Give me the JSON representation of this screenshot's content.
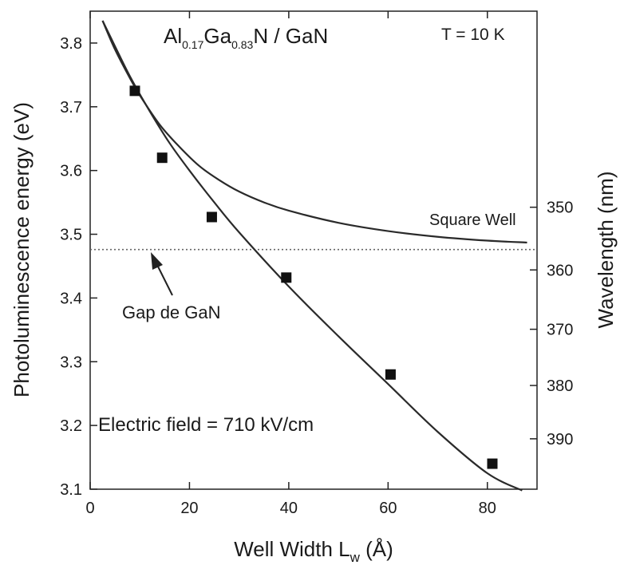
{
  "chart_data": {
    "type": "scatter",
    "title_parts": {
      "a1": "Al",
      "s1": "0.17",
      "a2": "Ga",
      "s2": "0.83",
      "a3": "N / GaN"
    },
    "temperature": "T = 10 K",
    "xlabel_parts": {
      "main": "Well Width L",
      "sub": "w",
      "unit": " (Å)"
    },
    "ylabel": "Photoluminescence energy (eV)",
    "y2label": "Wavelength (nm)",
    "xlim": [
      0,
      90
    ],
    "ylim": [
      3.1,
      3.85
    ],
    "x_ticks": [
      0,
      20,
      40,
      60,
      80
    ],
    "y_ticks": [
      3.1,
      3.2,
      3.3,
      3.4,
      3.5,
      3.6,
      3.7,
      3.8
    ],
    "y2_ticks": [
      350,
      360,
      370,
      380,
      390
    ],
    "series": [
      {
        "marker": "square",
        "x": [
          9,
          14.5,
          24.5,
          39.5,
          60.5,
          81
        ],
        "y": [
          3.725,
          3.62,
          3.527,
          3.432,
          3.28,
          3.14
        ]
      },
      {
        "name": "Square Well",
        "x": [
          2.5,
          5,
          8,
          10,
          14,
          18,
          22,
          26,
          30,
          35,
          40,
          50,
          60,
          70,
          80,
          88
        ],
        "y": [
          3.835,
          3.79,
          3.745,
          3.718,
          3.672,
          3.637,
          3.607,
          3.585,
          3.567,
          3.55,
          3.537,
          3.518,
          3.505,
          3.496,
          3.49,
          3.487
        ]
      },
      {
        "name": "Electric field = 710 kV/cm",
        "x": [
          2.5,
          5,
          8,
          12,
          16,
          20,
          25,
          30,
          40,
          50,
          60,
          70,
          80,
          87
        ],
        "y": [
          3.835,
          3.795,
          3.748,
          3.693,
          3.643,
          3.6,
          3.55,
          3.503,
          3.418,
          3.34,
          3.265,
          3.19,
          3.125,
          3.098
        ]
      }
    ],
    "reference_line": {
      "y": 3.476,
      "style": "dotted",
      "label": "Gap de GaN"
    },
    "annotations": {
      "square_well": "Square Well",
      "field": "Electric field = 710 kV/cm",
      "gap": "Gap de GaN"
    }
  }
}
